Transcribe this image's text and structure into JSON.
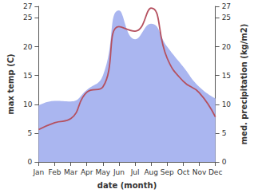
{
  "chart_data": {
    "type": "line",
    "x_label": "date (month)",
    "y_label": "max temp (C)",
    "y2_label": "med. precipitation (kg/m2)",
    "categories": [
      "Jan",
      "Feb",
      "Mar",
      "Apr",
      "May",
      "Jun",
      "Jul",
      "Aug",
      "Sep",
      "Oct",
      "Nov",
      "Dec"
    ],
    "ylim": [
      0,
      27
    ],
    "yticks": [
      0,
      5,
      10,
      15,
      20,
      25
    ],
    "y2lim": [
      0,
      27
    ],
    "y2ticks": [
      0,
      5,
      10,
      15,
      20,
      25
    ],
    "series": [
      {
        "name": "med. precipitation",
        "type": "area",
        "axis": "y2",
        "color": "#aab6f0",
        "values": [
          9.8,
          10.6,
          10.5,
          12.5,
          15.0,
          26.3,
          21.3,
          24.0,
          20.0,
          16.5,
          13.0,
          11.0
        ]
      },
      {
        "name": "max temp",
        "type": "line",
        "color": "#b5505f",
        "values": [
          5.6,
          6.8,
          7.5,
          12.1,
          13.0,
          23.5,
          22.7,
          26.7,
          18.0,
          14.0,
          12.0,
          7.8
        ]
      }
    ]
  }
}
